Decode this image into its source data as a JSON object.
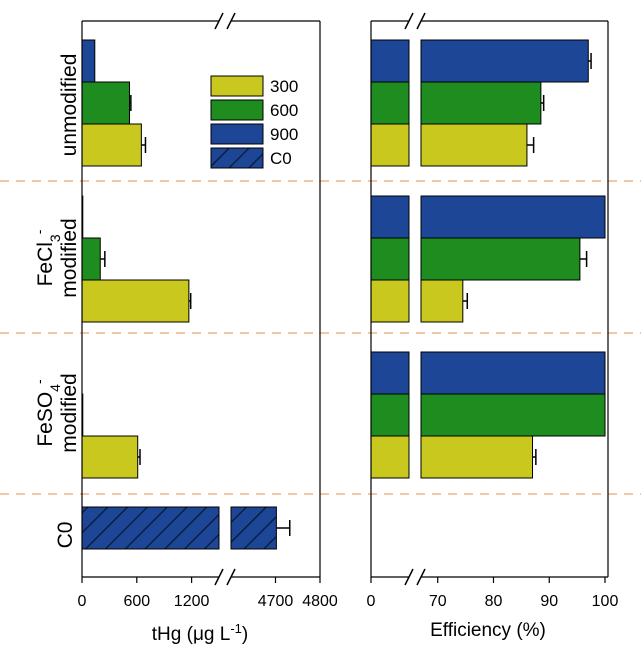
{
  "chart_data": {
    "type": "bar",
    "orientation": "horizontal",
    "colors": {
      "300": "#c8c81e",
      "600": "#1e8c1e",
      "900": "#1e4696",
      "C0": "#1e4696",
      "separator": "#f0b48c"
    },
    "legend": {
      "placement": "top-right of left panel",
      "entries": [
        {
          "key": "300",
          "label": "300"
        },
        {
          "key": "600",
          "label": "600"
        },
        {
          "key": "900",
          "label": "900"
        },
        {
          "key": "C0",
          "label": "C0",
          "pattern": "hatched"
        }
      ]
    },
    "groups": [
      {
        "id": "unmodified",
        "label": "unmodified"
      },
      {
        "id": "fecl3",
        "label_main": "FeCl",
        "label_sub": "3",
        "label_sup": "-",
        "label_line2": "modified"
      },
      {
        "id": "feso4",
        "label_main": "FeSO",
        "label_sub": "4",
        "label_sup": "-",
        "label_line2": "modified"
      },
      {
        "id": "c0",
        "label": "C0"
      }
    ],
    "panels": [
      {
        "id": "thg",
        "xlabel_main": "tHg (μg L",
        "xlabel_sup": "-1",
        "xlabel_end": ")",
        "broken_axis": true,
        "segments": [
          {
            "range": [
              0,
              1500
            ],
            "ticks": [
              "0",
              "600",
              "1200"
            ],
            "tick_values": [
              0,
              600,
              1200
            ]
          },
          {
            "range": [
              4600,
              4800
            ],
            "ticks": [
              "4700",
              "4800"
            ],
            "tick_values": [
              4700,
              4800
            ]
          }
        ],
        "series": [
          {
            "group": "unmodified",
            "temp": "900",
            "value": 140,
            "error": 0
          },
          {
            "group": "unmodified",
            "temp": "600",
            "value": 520,
            "error": 15
          },
          {
            "group": "unmodified",
            "temp": "300",
            "value": 650,
            "error": 45
          },
          {
            "group": "fecl3",
            "temp": "900",
            "value": 5,
            "error": 0
          },
          {
            "group": "fecl3",
            "temp": "600",
            "value": 200,
            "error": 50
          },
          {
            "group": "fecl3",
            "temp": "300",
            "value": 1170,
            "error": 20
          },
          {
            "group": "feso4",
            "temp": "900",
            "value": 0,
            "error": 0
          },
          {
            "group": "feso4",
            "temp": "600",
            "value": 5,
            "error": 0
          },
          {
            "group": "feso4",
            "temp": "300",
            "value": 610,
            "error": 25
          },
          {
            "group": "c0",
            "temp": "C0",
            "value": 4702,
            "error": 30
          }
        ]
      },
      {
        "id": "efficiency",
        "xlabel": "Efficiency (%)",
        "broken_axis": true,
        "segments": [
          {
            "range": [
              0,
              12
            ],
            "ticks": [
              "0"
            ],
            "tick_values": [
              0
            ]
          },
          {
            "range": [
              67,
              100
            ],
            "ticks": [
              "70",
              "80",
              "90",
              "100"
            ],
            "tick_values": [
              70,
              80,
              90,
              100
            ]
          }
        ],
        "series": [
          {
            "group": "unmodified",
            "temp": "900",
            "value": 97,
            "error": 0.5
          },
          {
            "group": "unmodified",
            "temp": "600",
            "value": 88.5,
            "error": 0.5
          },
          {
            "group": "unmodified",
            "temp": "300",
            "value": 86,
            "error": 1.2
          },
          {
            "group": "fecl3",
            "temp": "900",
            "value": 100,
            "error": 0
          },
          {
            "group": "fecl3",
            "temp": "600",
            "value": 95.5,
            "error": 1.2
          },
          {
            "group": "fecl3",
            "temp": "300",
            "value": 74.5,
            "error": 0.8
          },
          {
            "group": "feso4",
            "temp": "900",
            "value": 100,
            "error": 0
          },
          {
            "group": "feso4",
            "temp": "600",
            "value": 100,
            "error": 0
          },
          {
            "group": "feso4",
            "temp": "300",
            "value": 87,
            "error": 0.6
          }
        ]
      }
    ]
  }
}
